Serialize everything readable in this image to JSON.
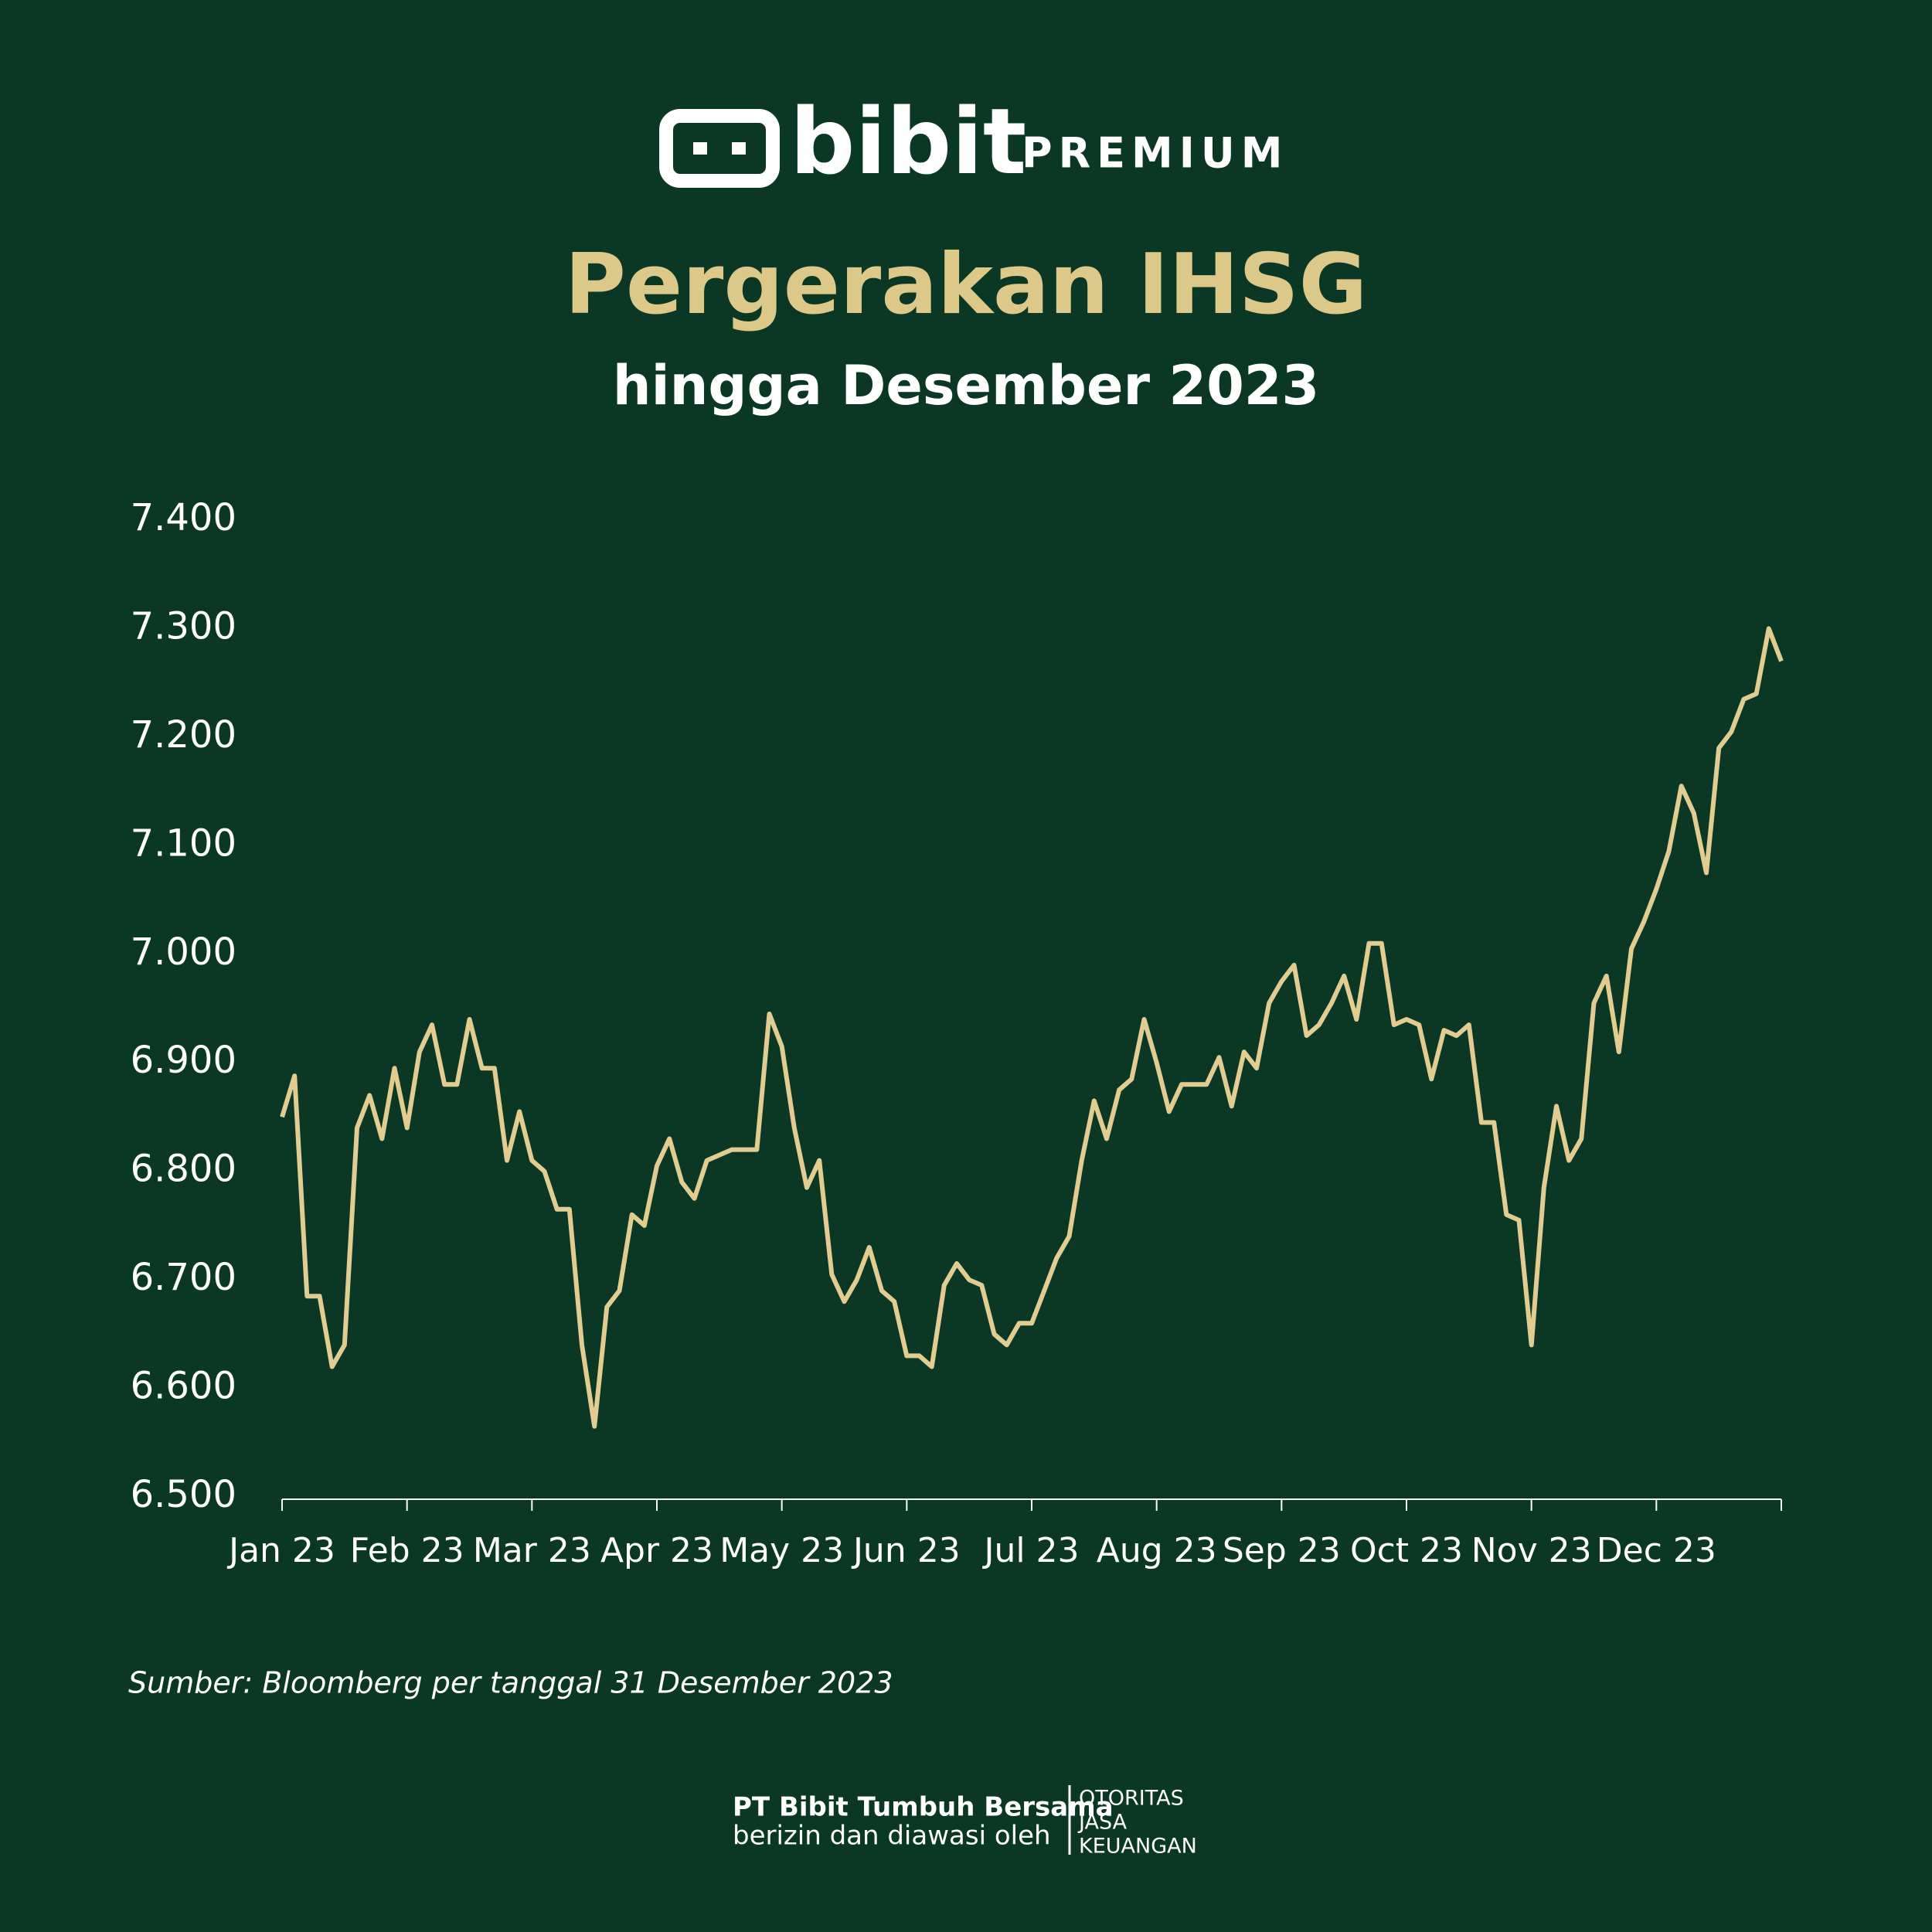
{
  "logo": {
    "name": "bibit",
    "tier": "PREMIUM"
  },
  "chart_data": {
    "type": "line",
    "title": "Pergerakan IHSG",
    "subtitle": "hingga Desember 2023",
    "x": [
      "Jan 23",
      "Jan 23",
      "Jan 23",
      "Jan 23",
      "Jan 23",
      "Jan 23",
      "Jan 23",
      "Jan 23",
      "Jan 23",
      "Jan 23",
      "Feb 23",
      "Feb 23",
      "Feb 23",
      "Feb 23",
      "Feb 23",
      "Feb 23",
      "Feb 23",
      "Feb 23",
      "Feb 23",
      "Feb 23",
      "Mar 23",
      "Mar 23",
      "Mar 23",
      "Mar 23",
      "Mar 23",
      "Mar 23",
      "Mar 23",
      "Mar 23",
      "Mar 23",
      "Mar 23",
      "Apr 23",
      "Apr 23",
      "Apr 23",
      "Apr 23",
      "Apr 23",
      "Apr 23",
      "Apr 23",
      "Apr 23",
      "Apr 23",
      "Apr 23",
      "May 23",
      "May 23",
      "May 23",
      "May 23",
      "May 23",
      "May 23",
      "May 23",
      "May 23",
      "May 23",
      "May 23",
      "Jun 23",
      "Jun 23",
      "Jun 23",
      "Jun 23",
      "Jun 23",
      "Jun 23",
      "Jun 23",
      "Jun 23",
      "Jun 23",
      "Jun 23",
      "Jul 23",
      "Jul 23",
      "Jul 23",
      "Jul 23",
      "Jul 23",
      "Jul 23",
      "Jul 23",
      "Jul 23",
      "Jul 23",
      "Jul 23",
      "Aug 23",
      "Aug 23",
      "Aug 23",
      "Aug 23",
      "Aug 23",
      "Aug 23",
      "Aug 23",
      "Aug 23",
      "Aug 23",
      "Aug 23",
      "Sep 23",
      "Sep 23",
      "Sep 23",
      "Sep 23",
      "Sep 23",
      "Sep 23",
      "Sep 23",
      "Sep 23",
      "Sep 23",
      "Sep 23",
      "Oct 23",
      "Oct 23",
      "Oct 23",
      "Oct 23",
      "Oct 23",
      "Oct 23",
      "Oct 23",
      "Oct 23",
      "Oct 23",
      "Oct 23",
      "Nov 23",
      "Nov 23",
      "Nov 23",
      "Nov 23",
      "Nov 23",
      "Nov 23",
      "Nov 23",
      "Nov 23",
      "Nov 23",
      "Nov 23",
      "Dec 23",
      "Dec 23",
      "Dec 23",
      "Dec 23",
      "Dec 23",
      "Dec 23",
      "Dec 23",
      "Dec 23",
      "Dec 23",
      "Dec 23",
      "Dec 23"
    ],
    "series": [
      {
        "name": "IHSG",
        "color": "#e0cd8f",
        "values": [
          6850,
          6888,
          6685,
          6685,
          6620,
          6640,
          6840,
          6870,
          6830,
          6895,
          6840,
          6910,
          6935,
          6880,
          6880,
          6940,
          6895,
          6895,
          6810,
          6855,
          6810,
          6800,
          6765,
          6765,
          6640,
          6565,
          6675,
          6690,
          6760,
          6750,
          6805,
          6830,
          6790,
          6775,
          6810,
          6815,
          6820,
          6820,
          6820,
          6945,
          6915,
          6840,
          6785,
          6810,
          6705,
          6680,
          6700,
          6730,
          6690,
          6680,
          6630,
          6630,
          6620,
          6695,
          6715,
          6700,
          6695,
          6650,
          6640,
          6660,
          6660,
          6690,
          6720,
          6740,
          6810,
          6865,
          6830,
          6875,
          6885,
          6940,
          6900,
          6855,
          6880,
          6880,
          6880,
          6905,
          6860,
          6910,
          6895,
          6955,
          6975,
          6990,
          6925,
          6935,
          6955,
          6980,
          6940,
          7010,
          7010,
          6935,
          6940,
          6935,
          6885,
          6930,
          6925,
          6935,
          6845,
          6845,
          6760,
          6755,
          6640,
          6785,
          6860,
          6810,
          6830,
          6955,
          6980,
          6910,
          7005,
          7030,
          7060,
          7095,
          7155,
          7130,
          7075,
          7190,
          7205,
          7235,
          7240,
          7300,
          7270
        ]
      }
    ],
    "ylim": [
      6500,
      7400
    ],
    "yticks": [
      {
        "value": 6500,
        "label": "6.500"
      },
      {
        "value": 6600,
        "label": "6.600"
      },
      {
        "value": 6700,
        "label": "6.700"
      },
      {
        "value": 6800,
        "label": "6.800"
      },
      {
        "value": 6900,
        "label": "6.900"
      },
      {
        "value": 7000,
        "label": "7.000"
      },
      {
        "value": 7100,
        "label": "7.100"
      },
      {
        "value": 7200,
        "label": "7.200"
      },
      {
        "value": 7300,
        "label": "7.300"
      },
      {
        "value": 7400,
        "label": "7.400"
      }
    ],
    "grid": false,
    "source": "Sumber: Bloomberg per tanggal 31 Desember 2023"
  },
  "footer": {
    "company": "PT Bibit Tumbuh Bersama",
    "license": "berizin dan diawasi oleh",
    "regulator": [
      "OTORITAS",
      "JASA",
      "KEUANGAN"
    ]
  }
}
